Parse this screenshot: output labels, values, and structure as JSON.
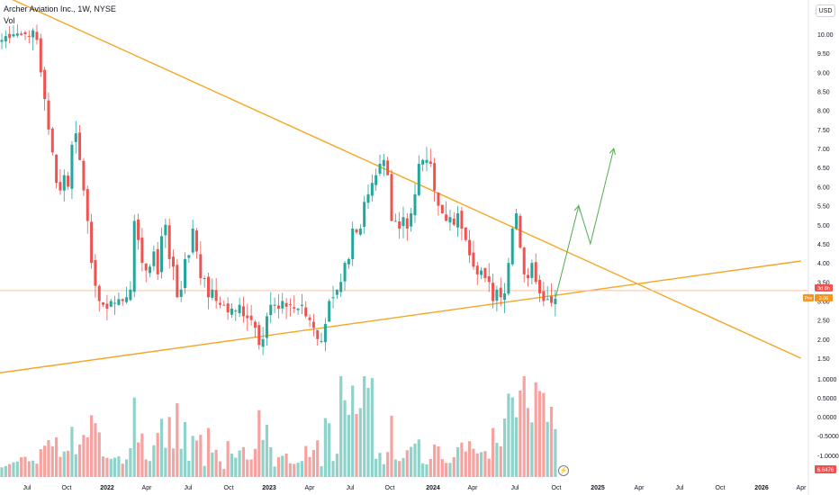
{
  "header": {
    "title": "Archer Aviation Inc., 1W, NYSE",
    "volume_label": "Vol",
    "currency": "USD"
  },
  "colors": {
    "up": "#26a69a",
    "down": "#ef5350",
    "vol_up": "#8fd2c9",
    "vol_down": "#f5a3a1",
    "trendline": "#f5a623",
    "arrow": "#4caf50",
    "price_line": "#f7c4a6",
    "last_price_badge": "#f7931a",
    "countdown_badge": "#ef5350"
  },
  "badges": {
    "countdown": "3d 8h",
    "price_tag": "Pre",
    "price_value": "3.06",
    "volume_value": "6.6476"
  },
  "icons": {
    "bolt": "lightning-icon"
  },
  "chart_data": {
    "type": "candlestick",
    "x_axis_labels": [
      "Jul",
      "Oct",
      "2022",
      "Apr",
      "Jul",
      "Oct",
      "2023",
      "Apr",
      "Jul",
      "Oct",
      "2024",
      "Apr",
      "Jul",
      "Oct",
      "2025",
      "Apr",
      "Jul",
      "Oct",
      "2026",
      "Apr"
    ],
    "price_axis": {
      "ticks": [
        "10.00",
        "9.50",
        "9.00",
        "8.50",
        "8.00",
        "7.50",
        "7.00",
        "6.50",
        "6.00",
        "5.50",
        "5.00",
        "4.50",
        "4.00",
        "3.50",
        "3.00",
        "2.50",
        "2.00",
        "1.50"
      ],
      "ylim": [
        1.2,
        10.7
      ]
    },
    "volume_axis": {
      "ticks": [
        "1.0000",
        "0.5000",
        "0.0000",
        "-0.5000",
        "-1.0000"
      ]
    },
    "current_price": 3.06,
    "weekly_close": [
      9.85,
      9.95,
      9.9,
      10.0,
      10.02,
      9.98,
      10.0,
      9.95,
      10.1,
      9.85,
      9.0,
      8.3,
      7.5,
      6.9,
      6.1,
      5.9,
      6.3,
      6.0,
      7.1,
      7.4,
      6.7,
      5.9,
      5.1,
      4.0,
      3.4,
      3.0,
      2.9,
      2.8,
      3.0,
      2.95,
      3.05,
      3.0,
      3.1,
      3.3,
      5.1,
      4.6,
      4.0,
      3.8,
      3.9,
      4.3,
      3.7,
      4.7,
      5.0,
      4.1,
      3.9,
      3.1,
      3.3,
      4.1,
      4.2,
      4.9,
      4.3,
      3.6,
      3.6,
      3.1,
      3.3,
      3.0,
      2.9,
      2.9,
      2.7,
      2.8,
      2.75,
      2.9,
      2.6,
      2.55,
      2.5,
      2.3,
      1.85,
      2.0,
      2.6,
      2.9,
      2.9,
      2.8,
      3.0,
      2.85,
      2.9,
      2.8,
      2.8,
      2.9,
      2.6,
      2.5,
      2.3,
      2.0,
      1.95,
      2.4,
      3.0,
      3.1,
      3.3,
      3.5,
      4.0,
      4.1,
      4.9,
      4.8,
      4.9,
      5.6,
      5.8,
      6.1,
      6.3,
      6.6,
      6.7,
      6.3,
      5.1,
      5.1,
      4.9,
      5.2,
      4.9,
      5.3,
      5.8,
      6.6,
      6.7,
      6.7,
      6.6,
      5.9,
      5.5,
      5.3,
      5.1,
      5.2,
      5.0,
      5.3,
      4.9,
      4.6,
      4.2,
      3.9,
      3.7,
      3.8,
      3.6,
      3.5,
      3.0,
      3.3,
      3.1,
      3.2,
      4.0,
      4.9,
      5.3,
      4.4,
      3.7,
      3.6,
      4.0,
      3.5,
      3.2,
      3.0,
      3.05,
      2.95,
      3.06
    ],
    "projection_path": [
      [
        0,
        3.06
      ],
      [
        6,
        5.5
      ],
      [
        9,
        4.5
      ],
      [
        15,
        7.0
      ]
    ],
    "trendlines": [
      {
        "from": {
          "week": -10,
          "price": 11.5
        },
        "to": {
          "week": 205,
          "price": 1.5
        }
      },
      {
        "from": {
          "week": -10,
          "price": 0.98
        },
        "to": {
          "week": 205,
          "price": 4.05
        }
      }
    ]
  }
}
